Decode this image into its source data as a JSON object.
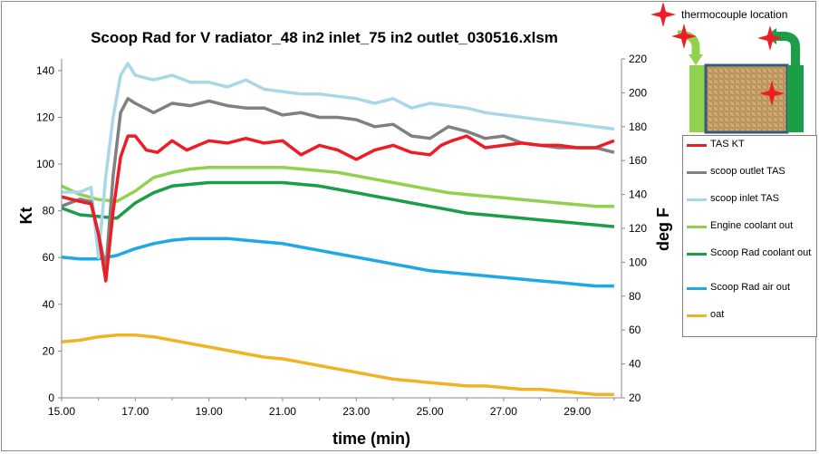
{
  "chart_data": {
    "type": "line",
    "title": "Scoop Rad for V radiator_48 in2 inlet_75 in2 outlet_030516.xlsm",
    "xlabel": "time (min)",
    "ylabel_left": "Kt",
    "ylabel_right": "deg F",
    "xlim": [
      15,
      30.2
    ],
    "ylim_left": [
      0,
      145
    ],
    "ylim_right": [
      20,
      220
    ],
    "x_ticks": [
      "15.00",
      "17.00",
      "19.00",
      "21.00",
      "23.00",
      "25.00",
      "27.00",
      "29.00"
    ],
    "y_ticks_left": [
      "0",
      "20",
      "40",
      "60",
      "80",
      "100",
      "120",
      "140"
    ],
    "y_ticks_right": [
      "20",
      "40",
      "60",
      "80",
      "100",
      "120",
      "140",
      "160",
      "180",
      "200",
      "220"
    ],
    "grid": false,
    "legend_position": "right",
    "series": [
      {
        "name": "TAS KT",
        "axis": "left",
        "color": "#ee1c25",
        "x": [
          15.0,
          15.5,
          15.8,
          16.0,
          16.2,
          16.4,
          16.6,
          16.8,
          17.0,
          17.3,
          17.6,
          18.0,
          18.4,
          19.0,
          19.5,
          20.0,
          20.5,
          21.0,
          21.5,
          22.0,
          22.5,
          23.0,
          23.5,
          24.0,
          24.5,
          25.0,
          25.3,
          25.6,
          26.0,
          26.5,
          27.0,
          27.5,
          28.0,
          28.5,
          29.0,
          29.5,
          30.0
        ],
        "y": [
          86,
          84,
          83,
          70,
          50,
          80,
          103,
          112,
          112,
          106,
          105,
          110,
          106,
          110,
          109,
          111,
          109,
          110,
          104,
          108,
          106,
          102,
          106,
          108,
          105,
          104,
          108,
          110,
          112,
          107,
          108,
          109,
          108,
          108,
          107,
          107,
          110
        ]
      },
      {
        "name": "scoop outlet TAS",
        "axis": "left",
        "color": "#808080",
        "x": [
          15.0,
          15.5,
          15.8,
          16.0,
          16.2,
          16.4,
          16.6,
          16.8,
          17.0,
          17.5,
          18.0,
          18.5,
          19.0,
          19.5,
          20.0,
          20.5,
          21.0,
          21.5,
          22.0,
          22.5,
          23.0,
          23.5,
          24.0,
          24.5,
          25.0,
          25.5,
          26.0,
          26.5,
          27.0,
          27.5,
          28.0,
          28.5,
          29.0,
          29.5,
          30.0
        ],
        "y": [
          82,
          85,
          84,
          70,
          55,
          95,
          122,
          128,
          126,
          122,
          126,
          125,
          127,
          125,
          124,
          124,
          121,
          122,
          120,
          120,
          119,
          116,
          117,
          112,
          111,
          116,
          114,
          111,
          112,
          109,
          108,
          107,
          107,
          107,
          105
        ]
      },
      {
        "name": "scoop inlet TAS",
        "axis": "left",
        "color": "#a8d8e8",
        "x": [
          15.0,
          15.5,
          15.8,
          16.0,
          16.2,
          16.4,
          16.6,
          16.8,
          17.0,
          17.5,
          18.0,
          18.5,
          19.0,
          19.5,
          20.0,
          20.5,
          21.0,
          21.5,
          22.0,
          22.5,
          23.0,
          23.5,
          24.0,
          24.5,
          25.0,
          25.5,
          26.0,
          26.5,
          27.0,
          27.5,
          28.0,
          28.5,
          29.0,
          29.5,
          30.0
        ],
        "y": [
          88,
          88,
          90,
          60,
          95,
          120,
          138,
          143,
          138,
          136,
          138,
          135,
          135,
          133,
          136,
          132,
          131,
          130,
          130,
          129,
          128,
          126,
          128,
          124,
          126,
          125,
          124,
          122,
          121,
          120,
          119,
          118,
          117,
          116,
          115
        ]
      },
      {
        "name": "Engine coolant out",
        "axis": "right",
        "color": "#92d050",
        "x": [
          15.0,
          15.5,
          16.0,
          16.5,
          17.0,
          17.5,
          18.0,
          18.5,
          19.0,
          19.5,
          20.0,
          20.5,
          21.0,
          21.5,
          22.0,
          22.5,
          23.0,
          23.5,
          24.0,
          24.5,
          25.0,
          25.5,
          26.0,
          26.5,
          27.0,
          27.5,
          28.0,
          28.5,
          29.0,
          29.5,
          30.0
        ],
        "y": [
          145,
          140,
          137,
          136,
          142,
          150,
          153,
          155,
          156,
          156,
          156,
          156,
          156,
          155,
          154,
          153,
          151,
          149,
          147,
          145,
          143,
          141,
          140,
          139,
          138,
          137,
          136,
          135,
          134,
          133,
          133
        ]
      },
      {
        "name": "Scoop Rad coolant out",
        "axis": "right",
        "color": "#1a9e47",
        "x": [
          15.0,
          15.5,
          16.0,
          16.5,
          17.0,
          17.5,
          18.0,
          18.5,
          19.0,
          19.5,
          20.0,
          20.5,
          21.0,
          21.5,
          22.0,
          22.5,
          23.0,
          23.5,
          24.0,
          24.5,
          25.0,
          25.5,
          26.0,
          26.5,
          27.0,
          27.5,
          28.0,
          28.5,
          29.0,
          29.5,
          30.0
        ],
        "y": [
          132,
          128,
          127,
          126,
          135,
          141,
          145,
          146,
          147,
          147,
          147,
          147,
          147,
          146,
          145,
          143,
          141,
          139,
          137,
          135,
          133,
          131,
          129,
          128,
          127,
          126,
          125,
          124,
          123,
          122,
          121
        ]
      },
      {
        "name": "Scoop Rad air out",
        "axis": "right",
        "color": "#1ea8e6",
        "x": [
          15.0,
          15.5,
          16.0,
          16.5,
          17.0,
          17.5,
          18.0,
          18.5,
          19.0,
          19.5,
          20.0,
          20.5,
          21.0,
          21.5,
          22.0,
          22.5,
          23.0,
          23.5,
          24.0,
          24.5,
          25.0,
          25.5,
          26.0,
          26.5,
          27.0,
          27.5,
          28.0,
          28.5,
          29.0,
          29.5,
          30.0
        ],
        "y": [
          103,
          102,
          102,
          104,
          108,
          111,
          113,
          114,
          114,
          114,
          113,
          112,
          111,
          109,
          107,
          105,
          103,
          101,
          99,
          97,
          95,
          94,
          93,
          92,
          91,
          90,
          89,
          88,
          87,
          86,
          86
        ]
      },
      {
        "name": "oat",
        "axis": "right",
        "color": "#f0b323",
        "x": [
          15.0,
          15.5,
          16.0,
          16.5,
          17.0,
          17.5,
          18.0,
          18.5,
          19.0,
          19.5,
          20.0,
          20.5,
          21.0,
          21.5,
          22.0,
          22.5,
          23.0,
          23.5,
          24.0,
          24.5,
          25.0,
          25.5,
          26.0,
          26.5,
          27.0,
          27.5,
          28.0,
          28.5,
          29.0,
          29.5,
          30.0
        ],
        "y": [
          53,
          54,
          56,
          57,
          57,
          56,
          54,
          52,
          50,
          48,
          46,
          44,
          43,
          41,
          39,
          37,
          35,
          33,
          31,
          30,
          29,
          28,
          27,
          27,
          26,
          25,
          25,
          24,
          23,
          22,
          22
        ]
      }
    ]
  },
  "legend": {
    "items": [
      {
        "label": "TAS KT",
        "color": "#ee1c25"
      },
      {
        "label": "scoop outlet TAS",
        "color": "#808080"
      },
      {
        "label": "scoop inlet TAS",
        "color": "#a8d8e8"
      },
      {
        "label": "Engine coolant out",
        "color": "#92d050"
      },
      {
        "label": "Scoop Rad coolant out",
        "color": "#1a9e47"
      },
      {
        "label": "Scoop Rad air out",
        "color": "#1ea8e6"
      },
      {
        "label": "oat",
        "color": "#f0b323"
      }
    ]
  },
  "diagram": {
    "caption": "thermocouple location",
    "marker_color": "#ee1c25",
    "left_pipe_color": "#92d050",
    "right_pipe_color": "#1a9e47"
  }
}
